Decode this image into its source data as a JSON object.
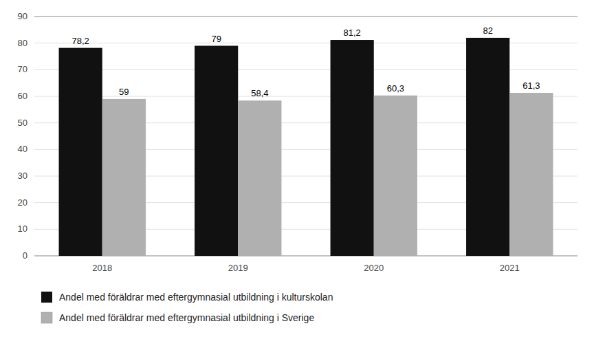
{
  "chart_data": {
    "type": "bar",
    "categories": [
      "2018",
      "2019",
      "2020",
      "2021"
    ],
    "series": [
      {
        "name": "Andel med föräldrar med eftergymnasial utbildning i kulturskolan",
        "color": "#111111",
        "values": [
          78.2,
          79,
          81.2,
          82
        ],
        "value_labels": [
          "78,2",
          "79",
          "81,2",
          "82"
        ]
      },
      {
        "name": "Andel med föräldrar med eftergymnasial utbildning i Sverige",
        "color": "#b0b0b0",
        "values": [
          59,
          58.4,
          60.3,
          61.3
        ],
        "value_labels": [
          "59",
          "58,4",
          "60,3",
          "61,3"
        ]
      }
    ],
    "ylim": [
      0,
      90
    ],
    "yticks": [
      0,
      10,
      20,
      30,
      40,
      50,
      60,
      70,
      80,
      90
    ],
    "grid": true,
    "legend": "bottom",
    "data_labels": true
  }
}
